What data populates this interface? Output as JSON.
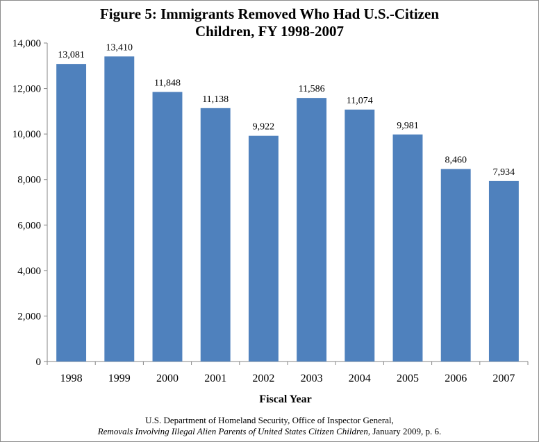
{
  "chart_data": {
    "type": "bar",
    "title_line1": "Figure 5: Immigrants  Removed Who Had U.S.-Citizen",
    "title_line2": "Children,  FY 1998-2007",
    "xlabel": "Fiscal Year",
    "ylabel": "",
    "categories": [
      "1998",
      "1999",
      "2000",
      "2001",
      "2002",
      "2003",
      "2004",
      "2005",
      "2006",
      "2007"
    ],
    "values": [
      13081,
      13410,
      11848,
      11138,
      9922,
      11586,
      11074,
      9981,
      8460,
      7934
    ],
    "value_labels": [
      "13,081",
      "13,410",
      "11,848",
      "11,138",
      "9,922",
      "11,586",
      "11,074",
      "9,981",
      "8,460",
      "7,934"
    ],
    "ylim": [
      0,
      14000
    ],
    "yticks": [
      0,
      2000,
      4000,
      6000,
      8000,
      10000,
      12000,
      14000
    ],
    "ytick_labels": [
      "0",
      "2,000",
      "4,000",
      "6,000",
      "8,000",
      "10,000",
      "12,000",
      "14,000"
    ],
    "grid": false,
    "bar_color": "#4f81bd"
  },
  "source": {
    "line1": "U.S. Department of Homeland Security, Office of Inspector General,",
    "line2_italic": "Removals Involving Illegal Alien Parents of United States Citizen Children",
    "line2_rest": ", January 2009, p. 6."
  }
}
